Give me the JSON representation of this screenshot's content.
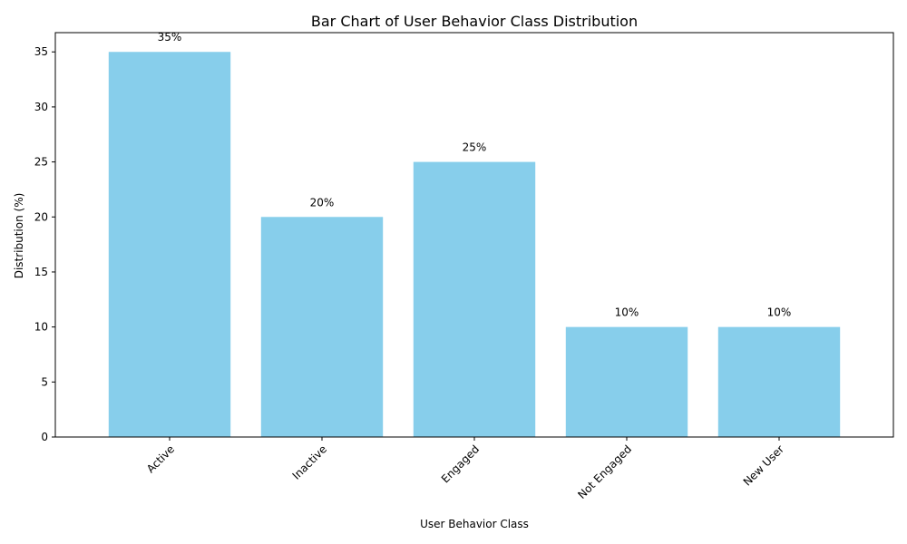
{
  "chart_data": {
    "type": "bar",
    "title": "Bar Chart of User Behavior Class Distribution",
    "xlabel": "User Behavior Class",
    "ylabel": "Distribution (%)",
    "categories": [
      "Active",
      "Inactive",
      "Engaged",
      "Not Engaged",
      "New User"
    ],
    "values": [
      35,
      20,
      25,
      10,
      10
    ],
    "value_labels": [
      "35%",
      "20%",
      "25%",
      "10%",
      "10%"
    ],
    "ylim": [
      0,
      36.75
    ],
    "yticks": [
      0,
      5,
      10,
      15,
      20,
      25,
      30,
      35
    ],
    "ytick_labels": [
      "0",
      "5",
      "10",
      "15",
      "20",
      "25",
      "30",
      "35"
    ],
    "grid": false,
    "bar_color": "#87CEEB",
    "x_tick_rotation_deg": 45
  }
}
